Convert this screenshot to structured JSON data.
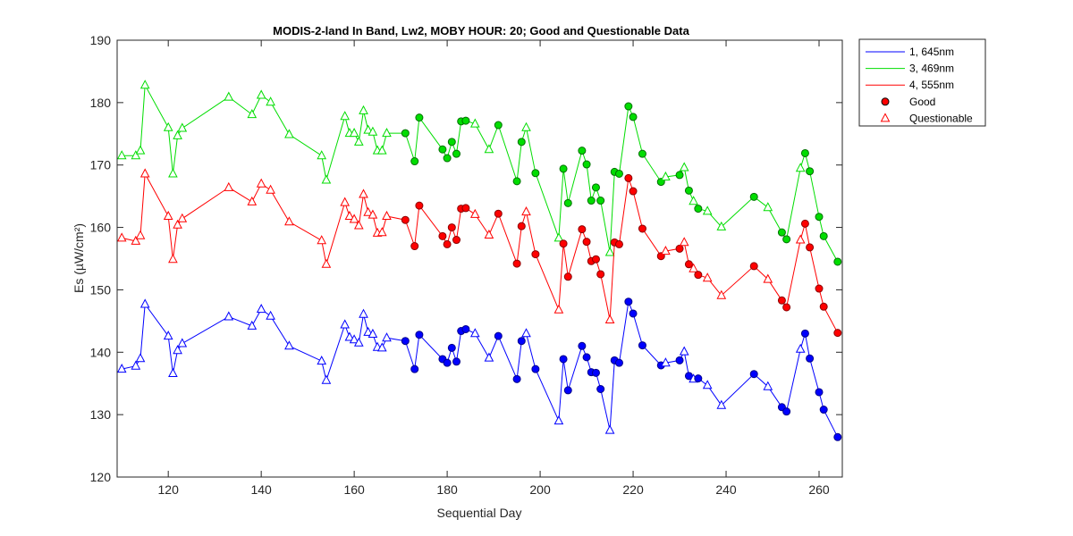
{
  "chart_data": {
    "type": "line",
    "title": "MODIS-2-land In Band,  Lw2, MOBY HOUR: 20;  Good and Questionable Data",
    "xlabel": "Sequential Day",
    "ylabel": "Es (µW/cm²)",
    "xlim": [
      109,
      265
    ],
    "ylim": [
      120,
      190
    ],
    "xticks": [
      120,
      140,
      160,
      180,
      200,
      220,
      240,
      260
    ],
    "yticks": [
      120,
      130,
      140,
      150,
      160,
      170,
      180,
      190
    ],
    "grid": false,
    "legend_position": "top-right outside",
    "legend": [
      {
        "label": "1, 645nm",
        "kind": "line",
        "color": "#0000ff"
      },
      {
        "label": "3, 469nm",
        "kind": "line",
        "color": "#00dd00"
      },
      {
        "label": "4, 555nm",
        "kind": "line",
        "color": "#ff0000"
      },
      {
        "label": "Good",
        "kind": "filled-circle",
        "color": "#ff0000"
      },
      {
        "label": "Questionable",
        "kind": "open-triangle",
        "color": "#ff0000"
      }
    ],
    "x": [
      110,
      113,
      114,
      115,
      120,
      121,
      122,
      123,
      133,
      138,
      140,
      142,
      146,
      153,
      154,
      158,
      159,
      160,
      161,
      162,
      163,
      164,
      165,
      166,
      167,
      171,
      173,
      174,
      179,
      180,
      181,
      182,
      183,
      184,
      186,
      189,
      191,
      195,
      196,
      197,
      199,
      204,
      205,
      206,
      209,
      210,
      211,
      212,
      213,
      215,
      216,
      217,
      219,
      220,
      222,
      226,
      227,
      230,
      231,
      232,
      233,
      234,
      236,
      239,
      246,
      249,
      252,
      253,
      256,
      257,
      258,
      260,
      261,
      264
    ],
    "quality": [
      "Q",
      "Q",
      "Q",
      "Q",
      "Q",
      "Q",
      "Q",
      "Q",
      "Q",
      "Q",
      "Q",
      "Q",
      "Q",
      "Q",
      "Q",
      "Q",
      "Q",
      "Q",
      "Q",
      "Q",
      "Q",
      "Q",
      "Q",
      "Q",
      "Q",
      "G",
      "G",
      "G",
      "G",
      "G",
      "G",
      "G",
      "G",
      "G",
      "Q",
      "Q",
      "G",
      "G",
      "G",
      "Q",
      "G",
      "Q",
      "G",
      "G",
      "G",
      "G",
      "G",
      "G",
      "G",
      "Q",
      "G",
      "G",
      "G",
      "G",
      "G",
      "G",
      "Q",
      "G",
      "Q",
      "G",
      "Q",
      "G",
      "Q",
      "Q",
      "G",
      "Q",
      "G",
      "G",
      "Q",
      "G",
      "G",
      "G",
      "G",
      "G"
    ],
    "series": [
      {
        "name": "1, 645nm",
        "color": "#0000ff",
        "values": [
          137.3,
          137.8,
          139.0,
          147.7,
          142.6,
          136.6,
          140.3,
          141.4,
          145.7,
          144.2,
          146.9,
          145.8,
          141.0,
          138.6,
          135.5,
          144.4,
          142.4,
          142.0,
          141.5,
          146.1,
          143.2,
          142.9,
          140.8,
          140.7,
          142.3,
          141.8,
          137.3,
          142.8,
          138.9,
          138.3,
          140.7,
          138.5,
          143.4,
          143.7,
          143.0,
          139.1,
          142.6,
          135.7,
          141.8,
          143.0,
          137.3,
          129.0,
          138.9,
          133.9,
          141.0,
          139.2,
          136.8,
          136.7,
          134.1,
          127.5,
          138.7,
          138.3,
          148.1,
          146.2,
          141.1,
          137.9,
          138.3,
          138.7,
          140.1,
          136.2,
          135.7,
          135.8,
          134.7,
          131.5,
          136.5,
          134.5,
          131.2,
          130.5,
          140.5,
          143.0,
          139.0,
          133.6,
          130.8,
          126.4
        ]
      },
      {
        "name": "3, 469nm",
        "color": "#00dd00",
        "values": [
          171.5,
          171.5,
          172.3,
          182.8,
          176.0,
          168.6,
          174.7,
          175.9,
          180.9,
          178.1,
          181.2,
          180.1,
          174.9,
          171.5,
          167.6,
          177.8,
          175.1,
          175.1,
          173.7,
          178.7,
          175.6,
          175.3,
          172.3,
          172.3,
          175.1,
          175.1,
          170.6,
          177.6,
          172.5,
          171.1,
          173.7,
          171.8,
          177.0,
          177.1,
          176.6,
          172.5,
          176.4,
          167.4,
          173.7,
          176.0,
          168.7,
          158.3,
          169.4,
          163.9,
          172.3,
          170.1,
          164.3,
          166.4,
          164.3,
          156.0,
          168.9,
          168.6,
          179.4,
          177.7,
          171.8,
          167.3,
          168.1,
          168.4,
          169.6,
          165.9,
          164.2,
          163.0,
          162.6,
          160.1,
          164.9,
          163.2,
          159.2,
          158.1,
          169.5,
          171.9,
          169.0,
          161.7,
          158.6,
          154.5
        ]
      },
      {
        "name": "4, 555nm",
        "color": "#ff0000",
        "values": [
          158.3,
          157.8,
          158.7,
          168.6,
          161.8,
          154.9,
          160.4,
          161.4,
          166.4,
          164.1,
          167.0,
          166.0,
          160.9,
          157.9,
          154.1,
          164.0,
          161.8,
          161.3,
          160.3,
          165.3,
          162.4,
          162.0,
          159.1,
          159.2,
          161.8,
          161.2,
          157.0,
          163.5,
          158.6,
          157.3,
          160.0,
          158.0,
          163.0,
          163.1,
          162.1,
          158.8,
          162.2,
          154.2,
          160.2,
          162.5,
          155.7,
          146.8,
          157.4,
          152.1,
          159.7,
          157.7,
          154.6,
          154.9,
          152.5,
          145.2,
          157.6,
          157.3,
          167.9,
          165.8,
          159.8,
          155.4,
          156.2,
          156.6,
          157.6,
          154.1,
          153.4,
          152.4,
          151.9,
          149.1,
          153.8,
          151.7,
          148.3,
          147.2,
          158.0,
          160.6,
          156.8,
          150.2,
          147.3,
          143.1
        ]
      }
    ]
  }
}
